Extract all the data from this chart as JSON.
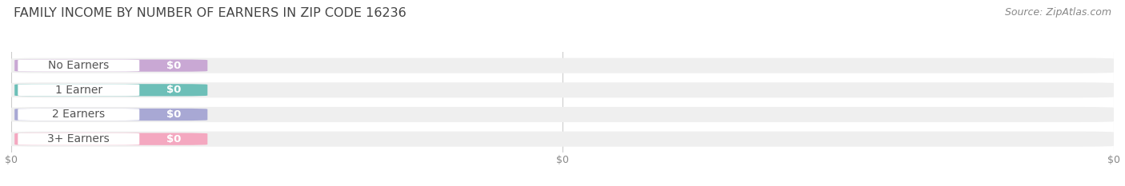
{
  "title": "FAMILY INCOME BY NUMBER OF EARNERS IN ZIP CODE 16236",
  "source_text": "Source: ZipAtlas.com",
  "categories": [
    "No Earners",
    "1 Earner",
    "2 Earners",
    "3+ Earners"
  ],
  "values": [
    0,
    0,
    0,
    0
  ],
  "bar_colors": [
    "#c9a8d4",
    "#6dbfb8",
    "#a8a8d4",
    "#f4a8c0"
  ],
  "label_text_color": "#555555",
  "value_labels": [
    "$0",
    "$0",
    "$0",
    "$0"
  ],
  "background_color": "#ffffff",
  "bar_bg_color": "#efefef",
  "xlim": [
    0,
    1
  ],
  "title_fontsize": 11.5,
  "source_fontsize": 9,
  "label_fontsize": 10,
  "value_fontsize": 9.5
}
